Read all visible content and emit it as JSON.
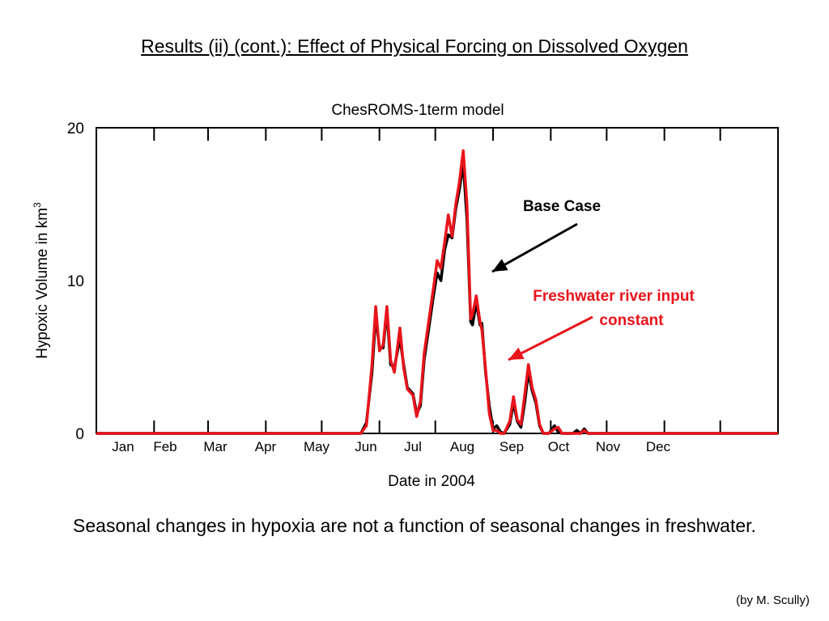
{
  "slide": {
    "title": "Results (ii) (cont.): Effect of Physical Forcing on Dissolved Oxygen",
    "conclusion": "Seasonal changes in hypoxia are not a function of seasonal changes in freshwater.",
    "credit": "(by M. Scully)"
  },
  "colors": {
    "base": "#000000",
    "fresh": "#e8141b",
    "axis": "#000000"
  },
  "chart_data": {
    "type": "line",
    "title": "ChesROMS-1term model",
    "xlabel": "Date in 2004",
    "ylabel": "Hypoxic Volume in km",
    "ylabel_sup": "3",
    "ylim": [
      0,
      20
    ],
    "yticks": [
      "0",
      "10",
      "20"
    ],
    "xlim_days": [
      0,
      366
    ],
    "x_units": "day of year 2004",
    "months": [
      "Jan",
      "Feb",
      "Mar",
      "Apr",
      "May",
      "Jun",
      "Jul",
      "Aug",
      "Sep",
      "Oct",
      "Nov",
      "Dec"
    ],
    "grid": false,
    "annotations": [
      {
        "id": "base",
        "text": "Base Case",
        "points_to_day": 210,
        "points_to_value": 10.5
      },
      {
        "id": "fresh",
        "line1": "Freshwater river input",
        "line2": "constant",
        "points_to_day": 218,
        "points_to_value": 4.6
      }
    ],
    "series": [
      {
        "name": "Base Case",
        "color": "#000000",
        "points": [
          [
            0,
            0
          ],
          [
            138,
            0
          ],
          [
            142,
            0
          ],
          [
            145,
            0.7
          ],
          [
            148,
            4
          ],
          [
            150,
            7.7
          ],
          [
            152,
            5.6
          ],
          [
            154,
            5.6
          ],
          [
            156,
            8
          ],
          [
            158,
            4.5
          ],
          [
            160,
            4.3
          ],
          [
            163,
            6.2
          ],
          [
            165,
            4.5
          ],
          [
            167,
            3
          ],
          [
            170,
            2.6
          ],
          [
            172,
            1.3
          ],
          [
            174,
            1.8
          ],
          [
            176,
            4.8
          ],
          [
            179,
            7.3
          ],
          [
            181,
            9
          ],
          [
            183,
            10.5
          ],
          [
            185,
            10
          ],
          [
            187,
            12
          ],
          [
            189,
            13
          ],
          [
            191,
            12.8
          ],
          [
            193,
            14.7
          ],
          [
            195,
            16
          ],
          [
            197,
            17.7
          ],
          [
            199,
            14
          ],
          [
            201,
            7.3
          ],
          [
            202,
            7.1
          ],
          [
            204,
            8.6
          ],
          [
            206,
            7.1
          ],
          [
            207,
            7.2
          ],
          [
            209,
            4
          ],
          [
            211,
            1.8
          ],
          [
            213,
            0.3
          ],
          [
            215,
            0.5
          ],
          [
            217,
            0.1
          ],
          [
            219,
            0
          ],
          [
            222,
            0.6
          ],
          [
            224,
            2
          ],
          [
            226,
            0.8
          ],
          [
            228,
            0.4
          ],
          [
            230,
            2
          ],
          [
            232,
            4
          ],
          [
            234,
            2.8
          ],
          [
            236,
            2
          ],
          [
            238,
            0.5
          ],
          [
            240,
            0
          ],
          [
            243,
            0
          ],
          [
            246,
            0.5
          ],
          [
            248,
            0.1
          ],
          [
            250,
            0
          ],
          [
            256,
            0
          ],
          [
            258,
            0.2
          ],
          [
            260,
            0
          ],
          [
            262,
            0.3
          ],
          [
            264,
            0
          ],
          [
            366,
            0
          ]
        ]
      },
      {
        "name": "Freshwater river input constant",
        "color": "#e8141b",
        "points": [
          [
            0,
            0
          ],
          [
            138,
            0
          ],
          [
            142,
            0
          ],
          [
            145,
            0.5
          ],
          [
            148,
            4.5
          ],
          [
            150,
            8.3
          ],
          [
            152,
            5.4
          ],
          [
            154,
            5.8
          ],
          [
            156,
            8.3
          ],
          [
            158,
            4.8
          ],
          [
            160,
            4
          ],
          [
            163,
            6.9
          ],
          [
            165,
            4.3
          ],
          [
            167,
            2.9
          ],
          [
            170,
            2.5
          ],
          [
            172,
            1.1
          ],
          [
            174,
            2.1
          ],
          [
            176,
            5.2
          ],
          [
            179,
            7.8
          ],
          [
            181,
            9.5
          ],
          [
            183,
            11.3
          ],
          [
            185,
            10.8
          ],
          [
            187,
            12.5
          ],
          [
            189,
            14.3
          ],
          [
            191,
            12.9
          ],
          [
            193,
            15
          ],
          [
            195,
            16.5
          ],
          [
            197,
            18.5
          ],
          [
            199,
            15
          ],
          [
            201,
            7.5
          ],
          [
            202,
            7.8
          ],
          [
            204,
            9
          ],
          [
            206,
            7.3
          ],
          [
            207,
            6.8
          ],
          [
            209,
            4.2
          ],
          [
            211,
            1.3
          ],
          [
            213,
            0.2
          ],
          [
            215,
            0.2
          ],
          [
            217,
            0
          ],
          [
            219,
            0
          ],
          [
            222,
            0.8
          ],
          [
            224,
            2.4
          ],
          [
            226,
            0.9
          ],
          [
            228,
            0.6
          ],
          [
            230,
            2.5
          ],
          [
            232,
            4.5
          ],
          [
            234,
            3
          ],
          [
            236,
            2.2
          ],
          [
            238,
            0.6
          ],
          [
            240,
            0
          ],
          [
            243,
            0
          ],
          [
            246,
            0.3
          ],
          [
            248,
            0.4
          ],
          [
            250,
            0
          ],
          [
            256,
            0
          ],
          [
            260,
            0
          ],
          [
            262,
            0.2
          ],
          [
            264,
            0
          ],
          [
            366,
            0
          ]
        ]
      }
    ]
  }
}
